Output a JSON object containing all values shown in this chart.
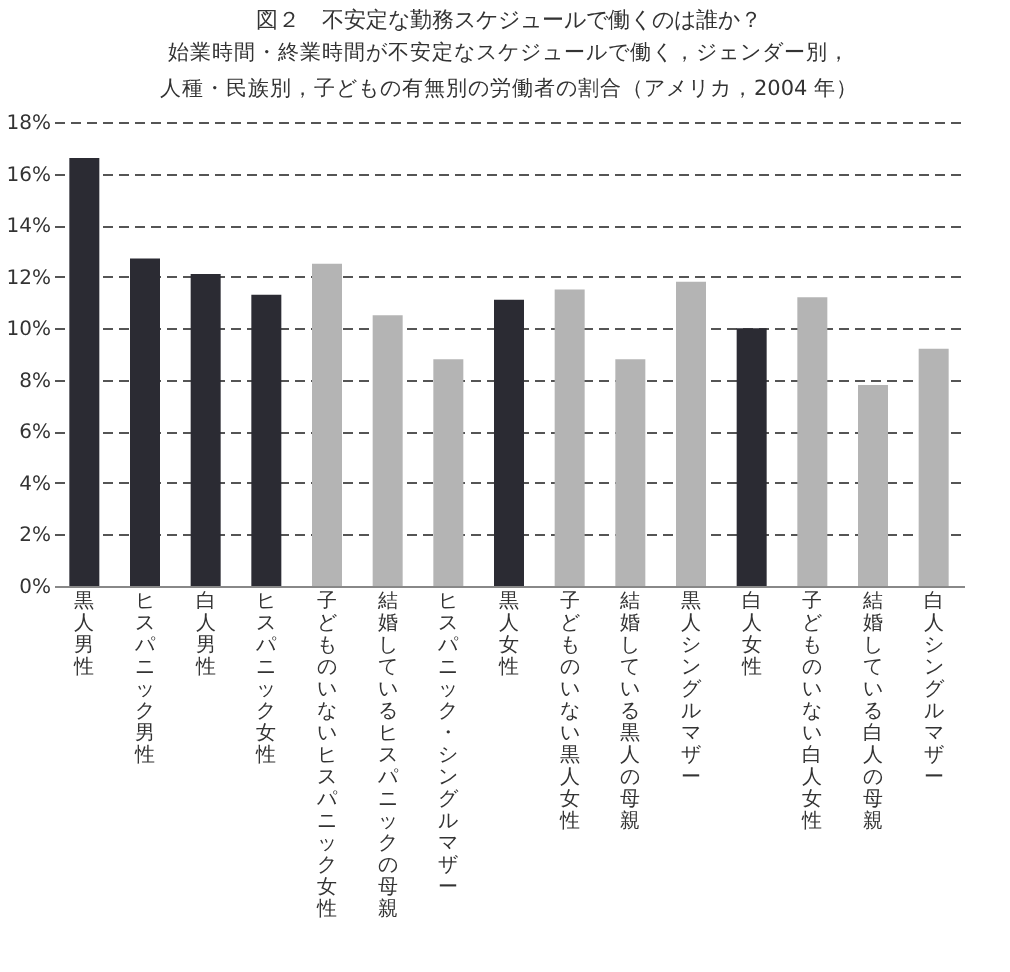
{
  "chart_data": {
    "type": "bar",
    "title": "図２　不安定な勤務スケジュールで働くのは誰か？",
    "subtitle": "始業時間・終業時間が不安定なスケジュールで働く，ジェンダー別，人種・民族別，子どもの有無別の労働者の割合（アメリカ，2004 年）",
    "categories": [
      "黒人男性",
      "ヒスパニック男性",
      "白人男性",
      "ヒスパニック女性",
      "子どものいないヒスパニック女性",
      "結婚しているヒスパニックの母親",
      "ヒスパニック・シングルマザー",
      "黒人女性",
      "子どものいない黒人女性",
      "結婚している黒人の母親",
      "黒人シングルマザー",
      "白人女性",
      "子どものいない白人女性",
      "結婚している白人の母親",
      "白人シングルマザー"
    ],
    "values": [
      16.6,
      12.7,
      12.1,
      11.3,
      12.5,
      10.5,
      8.8,
      11.1,
      11.5,
      8.8,
      11.8,
      10.0,
      11.2,
      7.8,
      9.2
    ],
    "colors": [
      "#2b2b33",
      "#2b2b33",
      "#2b2b33",
      "#2b2b33",
      "#b4b4b4",
      "#b4b4b4",
      "#b4b4b4",
      "#2b2b33",
      "#b4b4b4",
      "#b4b4b4",
      "#b4b4b4",
      "#2b2b33",
      "#b4b4b4",
      "#b4b4b4",
      "#b4b4b4"
    ],
    "ylim": [
      0,
      18
    ],
    "yticks": [
      {
        "value": 0,
        "label": "0%"
      },
      {
        "value": 2,
        "label": "2%"
      },
      {
        "value": 4,
        "label": "4%"
      },
      {
        "value": 6,
        "label": "6%"
      },
      {
        "value": 8,
        "label": "8%"
      },
      {
        "value": 10,
        "label": "10%"
      },
      {
        "value": 12,
        "label": "12%"
      },
      {
        "value": 14,
        "label": "14%"
      },
      {
        "value": 16,
        "label": "16%"
      },
      {
        "value": 18,
        "label": "18%"
      }
    ],
    "grid": "y"
  }
}
